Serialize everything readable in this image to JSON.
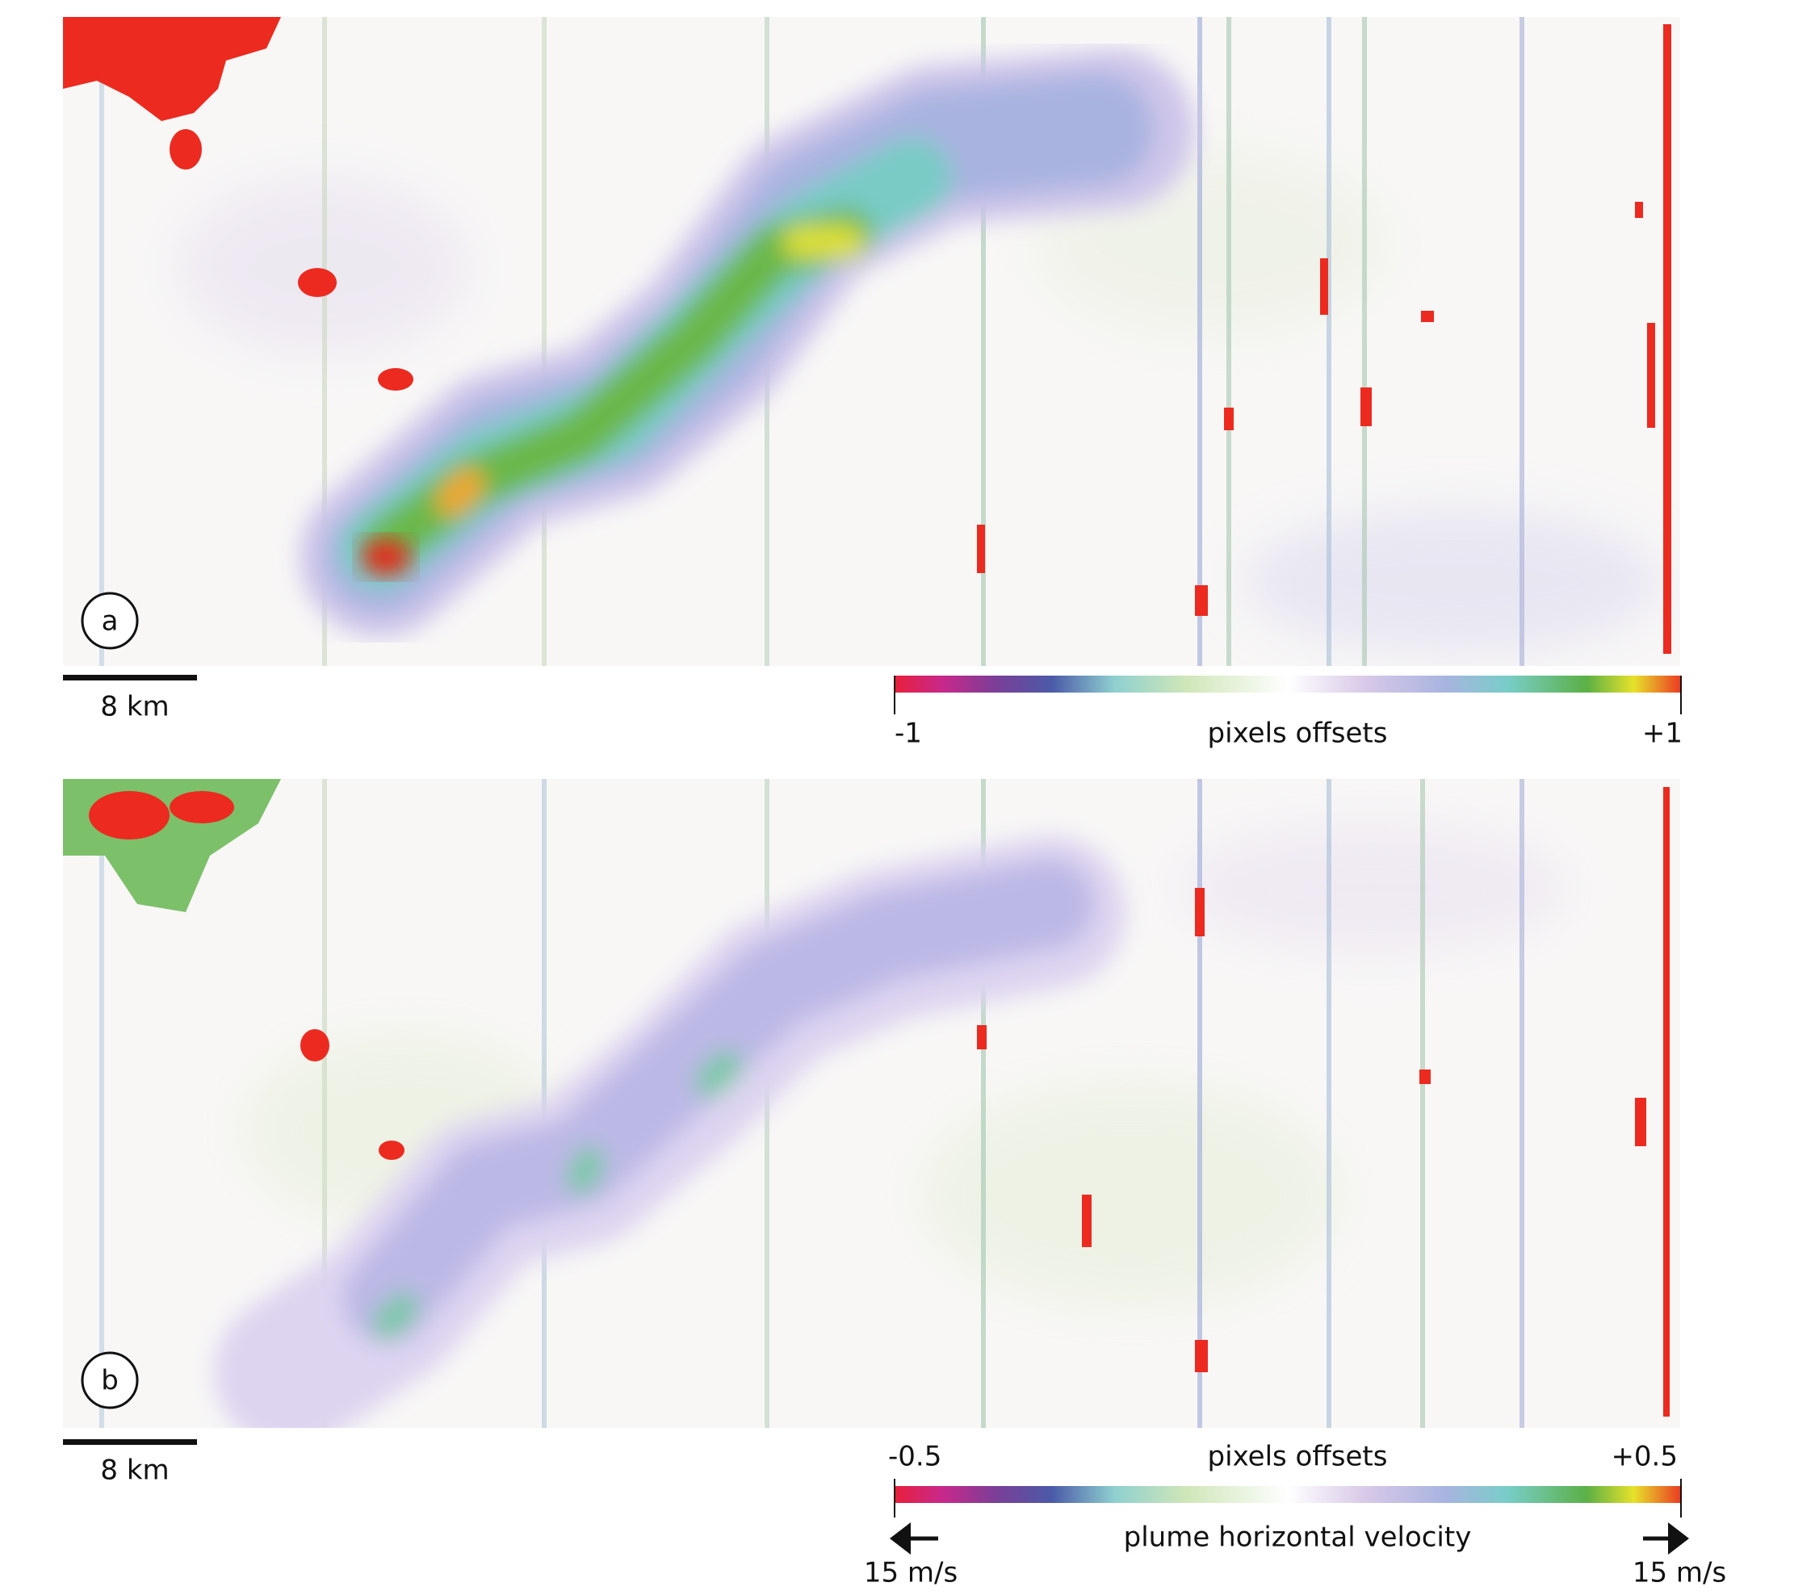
{
  "panels": [
    {
      "label": "a",
      "scale_bar": "8 km",
      "colorbar": {
        "min_label": "-1",
        "title": "pixels offsets",
        "max_label": "+1"
      }
    },
    {
      "label": "b",
      "scale_bar": "8 km",
      "colorbar": {
        "min_label": "-0.5",
        "title": "pixels offsets",
        "max_label": "+0.5",
        "velocity_title": "plume horizontal velocity",
        "left_speed": "15 m/s",
        "right_speed": "15 m/s"
      }
    }
  ]
}
